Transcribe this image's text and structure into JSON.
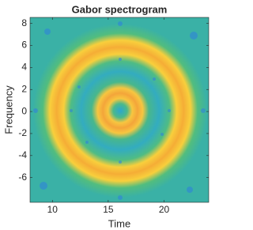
{
  "chart_data": {
    "type": "image",
    "title": "Gabor spectrogram",
    "xlabel": "Time",
    "ylabel": "Frequency",
    "xlim": [
      8,
      24
    ],
    "xticks": [
      10,
      15,
      20
    ],
    "ylim": [
      -8.25,
      8.55
    ],
    "yticks": [
      -6,
      -4,
      -2,
      0,
      2,
      4,
      6,
      8
    ]
  }
}
